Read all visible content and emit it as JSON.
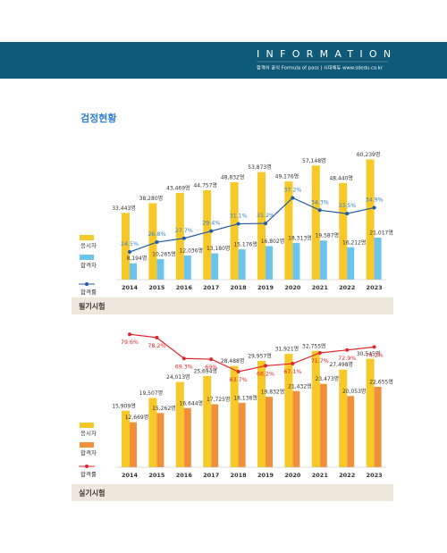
{
  "header": {
    "brand": "INFORMATION",
    "tagline": "합격의 공식 Formula of pass | 시대에듀 www.sdedu.co.kr"
  },
  "page_title": "검정현황",
  "chart_data": [
    {
      "type": "bar",
      "title": "필기시험",
      "categories": [
        "2014",
        "2015",
        "2016",
        "2017",
        "2018",
        "2019",
        "2020",
        "2021",
        "2022",
        "2023"
      ],
      "ylim": [
        0,
        64000
      ],
      "y2lim": [
        18,
        48
      ],
      "series": [
        {
          "name": "응시자",
          "color": "#f7c928",
          "values": [
            33443,
            38280,
            43469,
            44757,
            48832,
            53873,
            49176,
            57148,
            48440,
            60239
          ],
          "value_labels": [
            "33,443명",
            "38,280명",
            "43,469명",
            "44,757명",
            "48,832명",
            "53,873명",
            "49,176명",
            "57,148명",
            "48,440명",
            "60,239명"
          ]
        },
        {
          "name": "합격자",
          "color": "#6cc4ec",
          "values": [
            8194,
            10265,
            12036,
            13180,
            15176,
            16802,
            18313,
            19587,
            16212,
            21017
          ],
          "value_labels": [
            "8,194명",
            "10,265명",
            "12,036명",
            "13,180명",
            "15,176명",
            "16,802명",
            "18,313명",
            "19,587명",
            "16,212명",
            "21,017명"
          ]
        },
        {
          "name": "합격률",
          "type": "line",
          "axis": "y2",
          "color": "#1f5aa8",
          "label_color": "#2e7fd0",
          "values": [
            24.5,
            26.8,
            27.7,
            29.4,
            31.1,
            31.2,
            37.2,
            34.3,
            33.5,
            34.9
          ],
          "value_labels": [
            "24.5%",
            "26.8%",
            "27.7%",
            "29.4%",
            "31.1%",
            "31.2%",
            "37.2%",
            "34.3%",
            "33.5%",
            "34.9%"
          ]
        }
      ]
    },
    {
      "type": "bar",
      "title": "실기시험",
      "categories": [
        "2014",
        "2015",
        "2016",
        "2017",
        "2018",
        "2019",
        "2020",
        "2021",
        "2022",
        "2023"
      ],
      "ylim": [
        0,
        41000
      ],
      "y2lim": [
        23,
        85
      ],
      "series": [
        {
          "name": "응시자",
          "color": "#f7c928",
          "values": [
            15909,
            19507,
            24013,
            25694,
            28488,
            29957,
            31921,
            32755,
            27498,
            30545
          ],
          "value_labels": [
            "15,909명",
            "19,507명",
            "24,013명",
            "25,694명",
            "28,488명",
            "29,957명",
            "31,921명",
            "32,755명",
            "27,498명",
            "30,545명"
          ]
        },
        {
          "name": "합격자",
          "color": "#f0903a",
          "values": [
            12669,
            15262,
            16644,
            17725,
            18138,
            19832,
            21432,
            23473,
            20053,
            22655
          ],
          "value_labels": [
            "12,669명",
            "15,262명",
            "16,644명",
            "17,725명",
            "18,138명",
            "19,832명",
            "21,432명",
            "23,473명",
            "20,053명",
            "22,655명"
          ]
        },
        {
          "name": "합격률",
          "type": "line",
          "axis": "y2",
          "color": "#e3242b",
          "label_color": "#e3242b",
          "values": [
            79.6,
            78.2,
            69.3,
            69,
            63.7,
            66.2,
            67.1,
            71.7,
            72.9,
            74.2
          ],
          "value_labels": [
            "79.6%",
            "78.2%",
            "69.3%",
            "69%",
            "63.7%",
            "66.2%",
            "67.1%",
            "71.7%",
            "72.9%",
            "74.2%"
          ]
        }
      ]
    }
  ]
}
